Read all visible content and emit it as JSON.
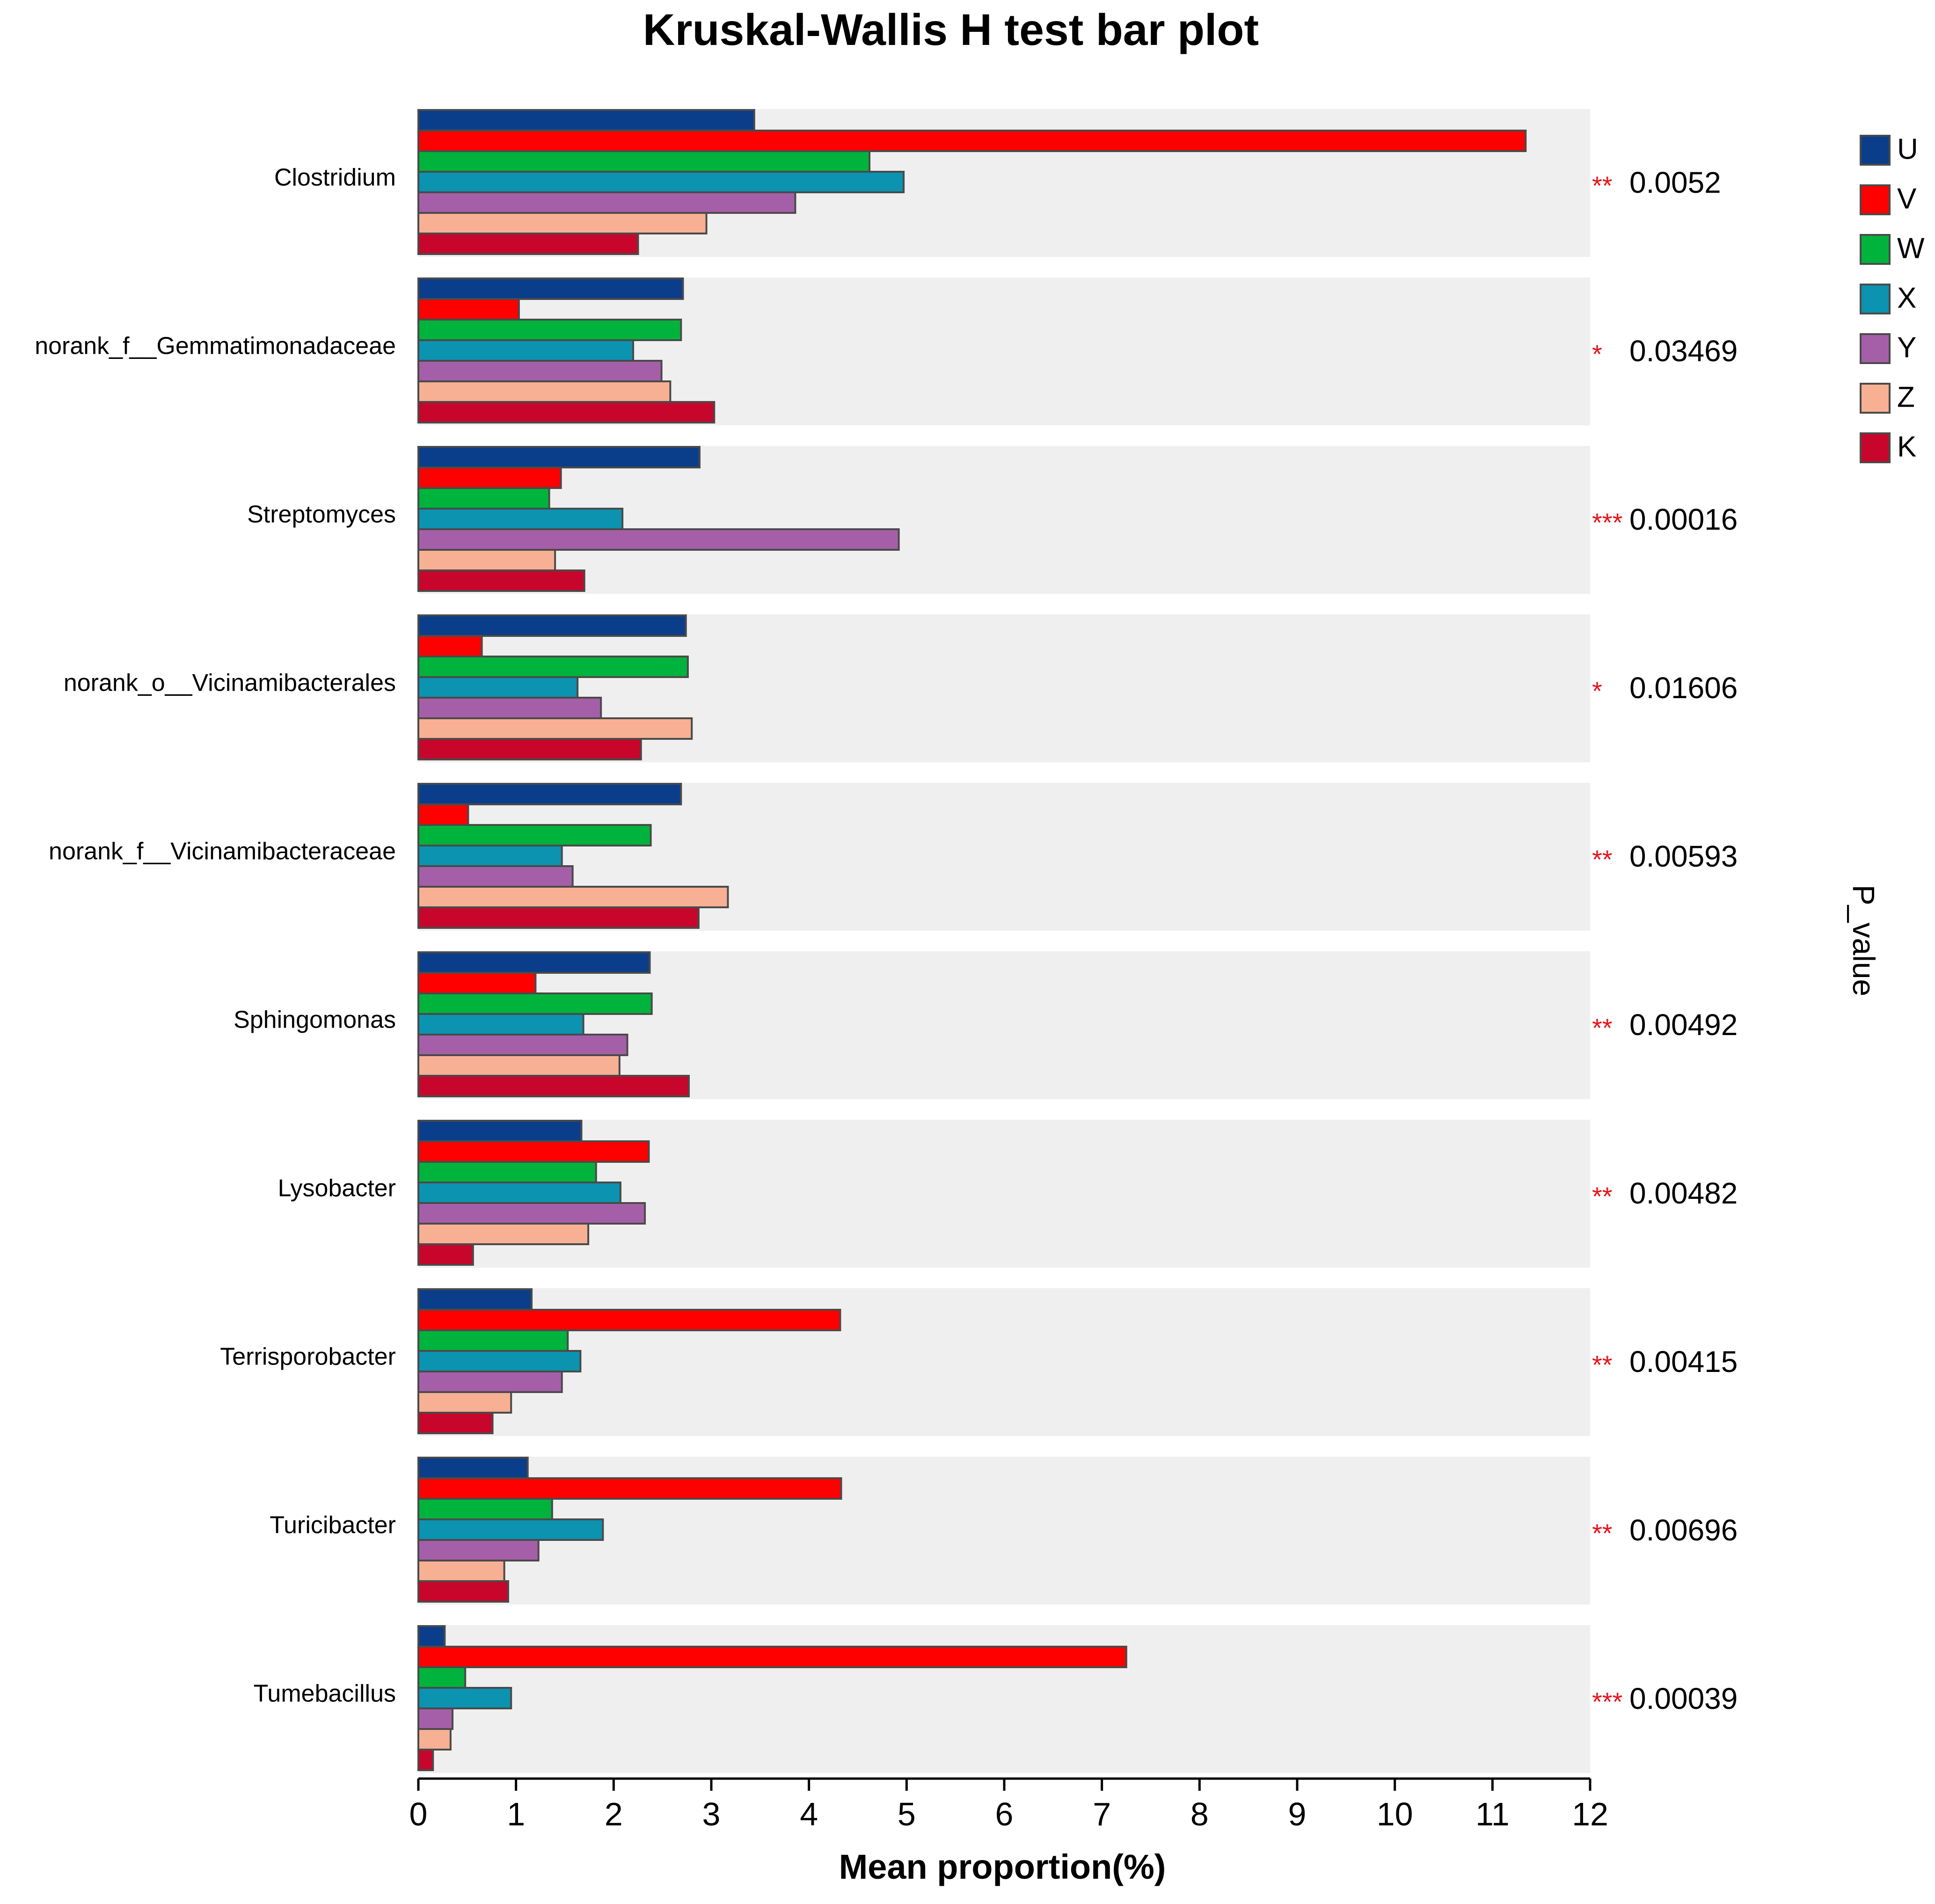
{
  "chart_data": {
    "type": "bar",
    "orientation": "horizontal",
    "title": "Kruskal-Wallis H test bar plot",
    "xlabel": "Mean proportion(%)",
    "right_label": "P_value",
    "xlim": [
      0,
      12
    ],
    "xticks": [
      "0",
      "1",
      "2",
      "3",
      "4",
      "5",
      "6",
      "7",
      "8",
      "9",
      "10",
      "11",
      "12"
    ],
    "grid": false,
    "legend_position": "top-right",
    "categories": [
      "Clostridium",
      "norank_f__Gemmatimonadaceae",
      "Streptomyces",
      "norank_o__Vicinamibacterales",
      "norank_f__Vicinamibacteraceae",
      "Sphingomonas",
      "Lysobacter",
      "Terrisporobacter",
      "Turicibacter",
      "Tumebacillus"
    ],
    "significance": [
      "**",
      "*",
      "***",
      "*",
      "**",
      "**",
      "**",
      "**",
      "**",
      "***"
    ],
    "p_values": [
      "0.0052",
      "0.03469",
      "0.00016",
      "0.01606",
      "0.00593",
      "0.00492",
      "0.00482",
      "0.00415",
      "0.00696",
      "0.00039"
    ],
    "series": [
      {
        "name": "U",
        "color": "#0b3e8a",
        "values": [
          3.44,
          2.71,
          2.88,
          2.74,
          2.69,
          2.37,
          1.67,
          1.16,
          1.12,
          0.27
        ]
      },
      {
        "name": "V",
        "color": "#ff0000",
        "values": [
          11.34,
          1.03,
          1.46,
          0.65,
          0.51,
          1.2,
          2.36,
          4.32,
          4.33,
          7.25
        ]
      },
      {
        "name": "W",
        "color": "#00b33c",
        "values": [
          4.62,
          2.69,
          1.34,
          2.76,
          2.38,
          2.39,
          1.82,
          1.53,
          1.37,
          0.48
        ]
      },
      {
        "name": "X",
        "color": "#0b93b0",
        "values": [
          4.97,
          2.2,
          2.09,
          1.63,
          1.47,
          1.69,
          2.07,
          1.66,
          1.89,
          0.95
        ]
      },
      {
        "name": "Y",
        "color": "#a55fa8",
        "values": [
          3.86,
          2.49,
          4.92,
          1.87,
          1.58,
          2.14,
          2.32,
          1.47,
          1.23,
          0.35
        ]
      },
      {
        "name": "Z",
        "color": "#f7b093",
        "values": [
          2.95,
          2.58,
          1.4,
          2.8,
          3.17,
          2.06,
          1.74,
          0.95,
          0.88,
          0.33
        ]
      },
      {
        "name": "K",
        "color": "#c8062b",
        "values": [
          2.25,
          3.03,
          1.7,
          2.28,
          2.87,
          2.77,
          0.56,
          0.76,
          0.92,
          0.15
        ]
      }
    ]
  },
  "colors": {
    "panel_bg": "#efefef",
    "significance": "#e8141b",
    "bar_stroke": "#4a4a4a",
    "text": "#000000"
  }
}
